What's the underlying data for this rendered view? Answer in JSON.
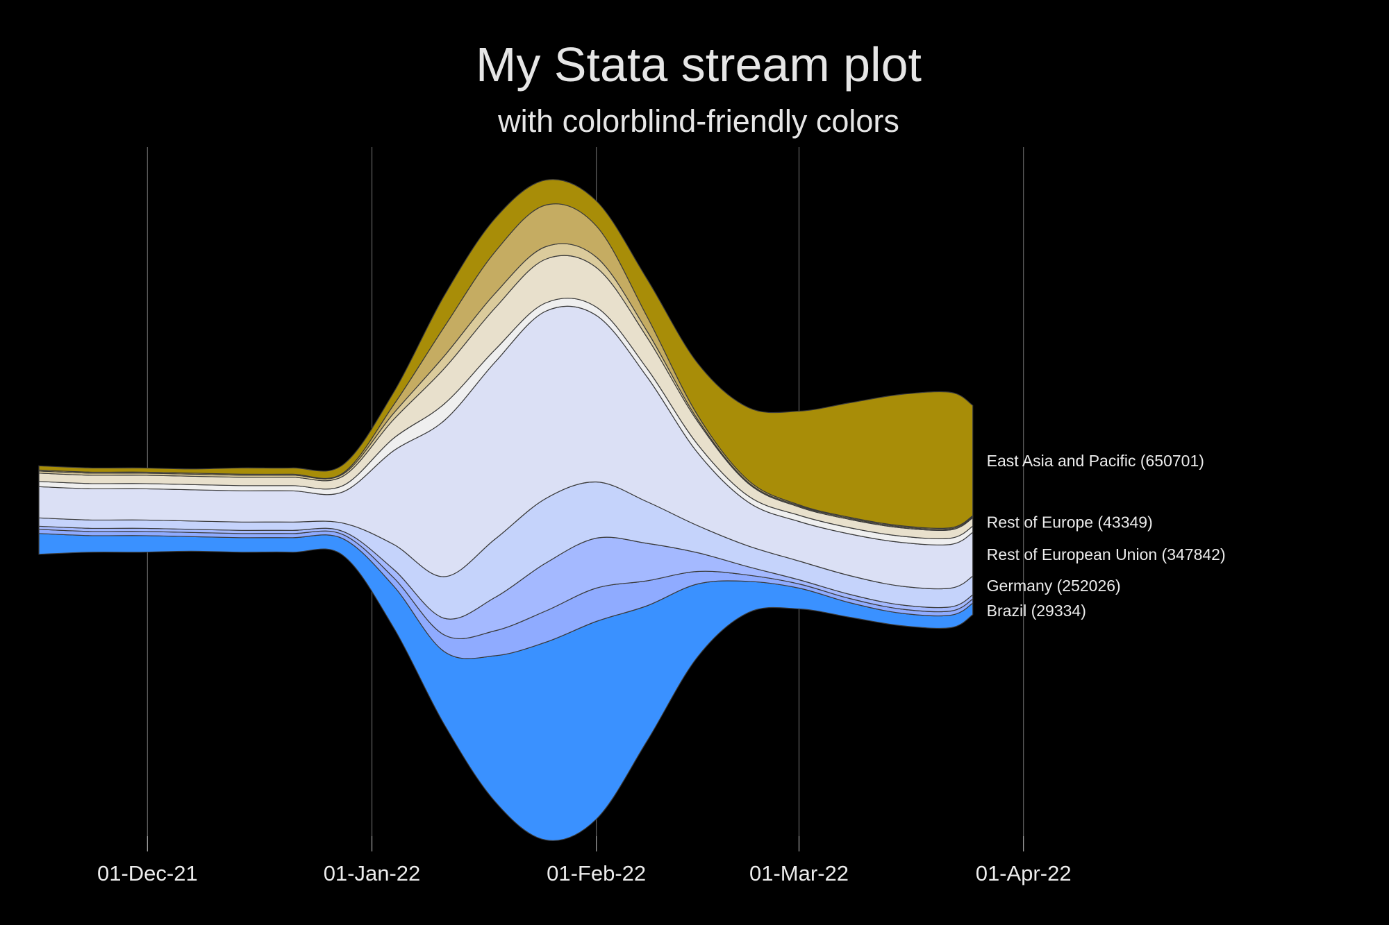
{
  "chart_data": {
    "type": "area",
    "subtype": "streamgraph",
    "title": "My Stata stream plot",
    "subtitle": "with colorblind-friendly colors",
    "xlabel": "",
    "ylabel": "",
    "x_axis": {
      "type": "date",
      "range": [
        "2021-11-16",
        "2022-04-16"
      ],
      "ticks": [
        "01-Dec-21",
        "01-Jan-22",
        "01-Feb-22",
        "01-Mar-22",
        "01-Apr-22"
      ]
    },
    "grid": "vertical",
    "legend": "right, labels placed at end of streams",
    "background": "#000000",
    "x": [
      "2021-11-16",
      "2021-11-23",
      "2021-11-30",
      "2021-12-07",
      "2021-12-14",
      "2021-12-21",
      "2021-12-28",
      "2022-01-04",
      "2022-01-11",
      "2022-01-18",
      "2022-01-25",
      "2022-02-01",
      "2022-02-08",
      "2022-02-15",
      "2022-02-22",
      "2022-03-01",
      "2022-03-08",
      "2022-03-15",
      "2022-03-22",
      "2022-03-25"
    ],
    "series": [
      {
        "name": "Brazil (29334)",
        "color": "#3a91ff",
        "values": [
          20,
          16,
          16,
          14,
          14,
          14,
          16,
          40,
          70,
          140,
          190,
          190,
          130,
          70,
          30,
          20,
          14,
          12,
          12,
          11
        ]
      },
      {
        "name": "",
        "color": "#8fabff",
        "values": [
          4,
          4,
          4,
          4,
          4,
          4,
          4,
          8,
          16,
          24,
          30,
          32,
          24,
          12,
          6,
          4,
          4,
          4,
          4,
          4
        ]
      },
      {
        "name": "",
        "color": "#a4b9ff",
        "values": [
          3,
          3,
          3,
          3,
          3,
          3,
          3,
          8,
          16,
          32,
          46,
          48,
          36,
          18,
          8,
          4,
          4,
          4,
          4,
          4
        ]
      },
      {
        "name": "Germany (252026)",
        "color": "#c5d3fb",
        "values": [
          8,
          8,
          8,
          8,
          8,
          8,
          8,
          24,
          40,
          56,
          62,
          54,
          40,
          26,
          20,
          18,
          18,
          18,
          18,
          18
        ]
      },
      {
        "name": "Rest of European Union (347842)",
        "color": "#dbe0f5",
        "values": [
          30,
          30,
          30,
          30,
          30,
          30,
          30,
          90,
          150,
          170,
          180,
          160,
          120,
          70,
          42,
          38,
          40,
          42,
          42,
          42
        ]
      },
      {
        "name": "",
        "color": "#efefef",
        "values": [
          5,
          5,
          5,
          5,
          5,
          5,
          6,
          12,
          16,
          12,
          8,
          8,
          8,
          8,
          6,
          6,
          6,
          6,
          6,
          6
        ]
      },
      {
        "name": "Rest of Europe (43349)",
        "color": "#e8e0cc",
        "values": [
          8,
          8,
          8,
          8,
          8,
          8,
          9,
          18,
          34,
          40,
          42,
          38,
          30,
          22,
          12,
          8,
          8,
          8,
          8,
          8
        ]
      },
      {
        "name": "",
        "color": "#dbcb9c",
        "values": [
          2,
          2,
          2,
          2,
          2,
          2,
          2,
          6,
          12,
          14,
          12,
          10,
          6,
          2,
          1,
          1,
          1,
          1,
          1,
          1
        ]
      },
      {
        "name": "",
        "color": "#c5ac62",
        "values": [
          1,
          1,
          1,
          1,
          1,
          1,
          1,
          8,
          28,
          40,
          40,
          30,
          14,
          4,
          2,
          1,
          1,
          1,
          1,
          1
        ]
      },
      {
        "name": "East Asia and Pacific (650701)",
        "color": "#a88d08",
        "values": [
          4,
          4,
          4,
          4,
          6,
          6,
          8,
          12,
          30,
          32,
          24,
          24,
          36,
          50,
          70,
          90,
          110,
          126,
          130,
          106
        ]
      }
    ]
  }
}
